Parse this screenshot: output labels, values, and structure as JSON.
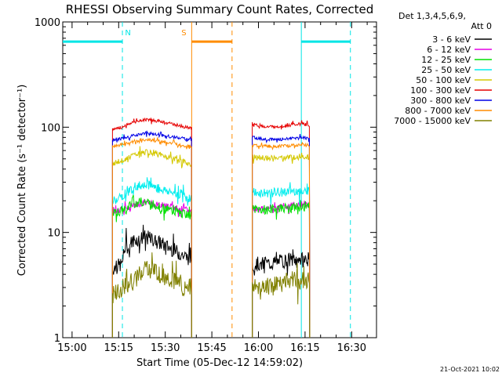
{
  "chart_data": {
    "type": "line",
    "title": "RHESSI Observing Summary Count Rates, Corrected",
    "xlabel": "Start Time (05-Dec-12 14:59:02)",
    "ylabel": "Corrected Count Rate (s⁻¹ detector⁻¹)",
    "yscale": "log",
    "ylim": [
      1,
      1000
    ],
    "xlim_minutes": [
      -3,
      98
    ],
    "x_ticks": [
      {
        "label": "15:00",
        "min": 0
      },
      {
        "label": "15:15",
        "min": 15
      },
      {
        "label": "15:30",
        "min": 30
      },
      {
        "label": "15:45",
        "min": 45
      },
      {
        "label": "16:00",
        "min": 60
      },
      {
        "label": "16:15",
        "min": 75
      },
      {
        "label": "16:30",
        "min": 90
      }
    ],
    "y_ticks": [
      {
        "label": "1",
        "value": 1
      },
      {
        "label": "10",
        "value": 10
      },
      {
        "label": "100",
        "value": 100
      },
      {
        "label": "1000",
        "value": 1000
      }
    ],
    "detector_label": "Det 1,3,4,5,6,9,",
    "attenuator_label": "Att 0",
    "timestamp": "21-Oct-2021 10:02",
    "data_gaps": [
      [
        -3,
        13
      ],
      [
        38.5,
        58
      ],
      [
        76.5,
        98
      ]
    ],
    "flags": [
      {
        "label": "N",
        "start": -3,
        "end": 16.2,
        "color": "#00e5e5",
        "lines": "cyan",
        "label_at": 18
      },
      {
        "label": "S",
        "start": 38.5,
        "end": 51.5,
        "color": "#ff8c00",
        "lines": "orange",
        "label_at": 36
      },
      {
        "label": "",
        "start": 73.8,
        "end": 89.6,
        "color": "#00e5e5",
        "lines": "cyan",
        "label_at": null
      }
    ],
    "series": [
      {
        "name": "3 - 6 keV",
        "color": "#000000",
        "noise": 0.07,
        "values": [
          [
            13,
            4.5
          ],
          [
            16,
            5
          ],
          [
            17,
            7
          ],
          [
            20,
            8.5
          ],
          [
            24,
            9
          ],
          [
            28,
            8
          ],
          [
            32,
            7
          ],
          [
            36,
            6
          ],
          [
            38.5,
            5.5
          ],
          [
            58,
            5
          ],
          [
            62,
            5
          ],
          [
            66,
            5.2
          ],
          [
            70,
            5.5
          ],
          [
            74,
            5.5
          ],
          [
            76.5,
            5.6
          ]
        ]
      },
      {
        "name": "6 - 12 keV",
        "color": "#e600e6",
        "noise": 0.03,
        "values": [
          [
            13,
            16
          ],
          [
            16,
            16.5
          ],
          [
            20,
            18
          ],
          [
            24,
            19.5
          ],
          [
            28,
            18.5
          ],
          [
            32,
            17.5
          ],
          [
            36,
            16.5
          ],
          [
            38.5,
            16
          ],
          [
            58,
            17
          ],
          [
            62,
            17
          ],
          [
            66,
            17.5
          ],
          [
            70,
            18
          ],
          [
            74,
            18.5
          ],
          [
            76.5,
            18.5
          ]
        ]
      },
      {
        "name": "12 - 25 keV",
        "color": "#00e000",
        "noise": 0.045,
        "values": [
          [
            13,
            15
          ],
          [
            16,
            16
          ],
          [
            20,
            19
          ],
          [
            24,
            19.5
          ],
          [
            28,
            17.5
          ],
          [
            32,
            16
          ],
          [
            36,
            15
          ],
          [
            38.5,
            14.5
          ],
          [
            58,
            16.5
          ],
          [
            62,
            16.5
          ],
          [
            66,
            17
          ],
          [
            70,
            17
          ],
          [
            74,
            17.5
          ],
          [
            76.5,
            17.5
          ]
        ]
      },
      {
        "name": "25 - 50 keV",
        "color": "#00eeee",
        "noise": 0.045,
        "values": [
          [
            13,
            20
          ],
          [
            16,
            22
          ],
          [
            20,
            27
          ],
          [
            24,
            29
          ],
          [
            28,
            26
          ],
          [
            32,
            24
          ],
          [
            36,
            22
          ],
          [
            38.5,
            21
          ],
          [
            58,
            24
          ],
          [
            62,
            23.5
          ],
          [
            66,
            24
          ],
          [
            70,
            24.5
          ],
          [
            74,
            25
          ],
          [
            76.5,
            25
          ]
        ]
      },
      {
        "name": "50 - 100 keV",
        "color": "#d4c800",
        "noise": 0.025,
        "values": [
          [
            13,
            45
          ],
          [
            16,
            48
          ],
          [
            20,
            55
          ],
          [
            24,
            58
          ],
          [
            28,
            55
          ],
          [
            32,
            51
          ],
          [
            36,
            47
          ],
          [
            38.5,
            45
          ],
          [
            58,
            52
          ],
          [
            62,
            51
          ],
          [
            66,
            51
          ],
          [
            70,
            52
          ],
          [
            74,
            53
          ],
          [
            76.5,
            52
          ]
        ]
      },
      {
        "name": "100 - 300 keV",
        "color": "#e60000",
        "noise": 0.015,
        "values": [
          [
            13,
            95
          ],
          [
            16,
            100
          ],
          [
            20,
            112
          ],
          [
            24,
            119
          ],
          [
            28,
            114
          ],
          [
            32,
            108
          ],
          [
            36,
            101
          ],
          [
            38.5,
            98
          ],
          [
            58,
            108
          ],
          [
            62,
            101
          ],
          [
            66,
            101
          ],
          [
            70,
            104
          ],
          [
            74,
            108
          ],
          [
            76.5,
            104
          ]
        ]
      },
      {
        "name": "300 - 800 keV",
        "color": "#0000e6",
        "noise": 0.015,
        "values": [
          [
            13,
            76
          ],
          [
            16,
            78
          ],
          [
            20,
            84
          ],
          [
            24,
            88
          ],
          [
            28,
            85
          ],
          [
            32,
            81
          ],
          [
            36,
            78
          ],
          [
            38.5,
            76
          ],
          [
            58,
            80
          ],
          [
            62,
            77
          ],
          [
            66,
            76
          ],
          [
            70,
            78
          ],
          [
            74,
            80
          ],
          [
            76.5,
            78
          ]
        ]
      },
      {
        "name": "800 - 7000 keV",
        "color": "#ff8c00",
        "noise": 0.015,
        "values": [
          [
            13,
            66
          ],
          [
            16,
            68
          ],
          [
            20,
            73
          ],
          [
            24,
            76
          ],
          [
            28,
            74
          ],
          [
            32,
            70
          ],
          [
            36,
            67
          ],
          [
            38.5,
            66
          ],
          [
            58,
            67
          ],
          [
            62,
            66
          ],
          [
            66,
            66
          ],
          [
            70,
            67
          ],
          [
            74,
            68
          ],
          [
            76.5,
            67
          ]
        ]
      },
      {
        "name": "7000 - 15000 keV",
        "color": "#808000",
        "noise": 0.09,
        "values": [
          [
            13,
            2.5
          ],
          [
            16,
            3
          ],
          [
            20,
            3.5
          ],
          [
            24,
            4.5
          ],
          [
            28,
            4
          ],
          [
            32,
            3.5
          ],
          [
            36,
            3
          ],
          [
            38.5,
            3
          ],
          [
            58,
            3
          ],
          [
            62,
            3
          ],
          [
            66,
            3.2
          ],
          [
            70,
            3.5
          ],
          [
            74,
            3.5
          ],
          [
            76.5,
            3.5
          ]
        ]
      }
    ]
  }
}
